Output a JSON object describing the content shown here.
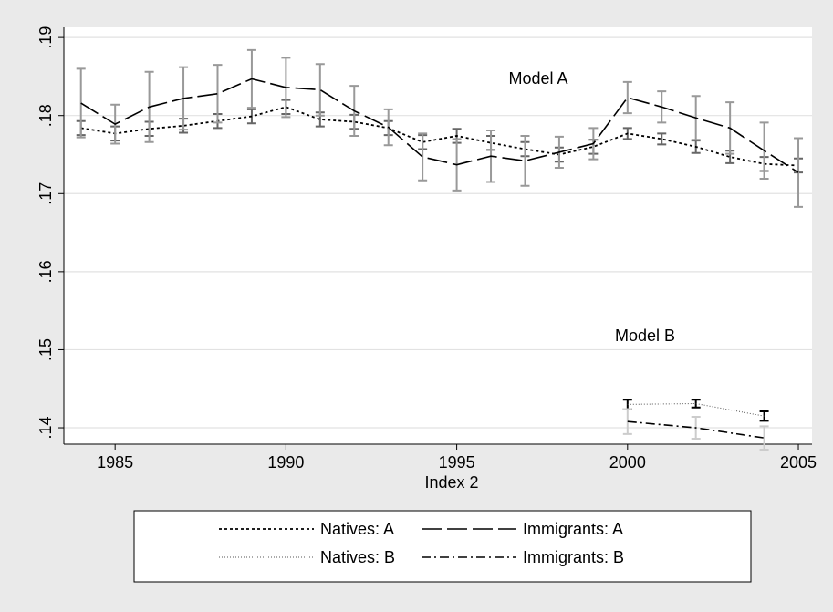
{
  "chart_data": {
    "type": "line",
    "xlabel": "Index 2",
    "annotations": [
      "Model A",
      "Model B"
    ],
    "xlim": [
      1983.5,
      2005.4
    ],
    "xticks": [
      1985,
      1990,
      1995,
      2000,
      2005
    ],
    "ylim": [
      0.1379,
      0.1913
    ],
    "yticks": [
      {
        "value": 0.14,
        "label": ".14"
      },
      {
        "value": 0.15,
        "label": ".15"
      },
      {
        "value": 0.16,
        "label": ".16"
      },
      {
        "value": 0.17,
        "label": ".17"
      },
      {
        "value": 0.18,
        "label": ".18"
      },
      {
        "value": 0.19,
        "label": ".19"
      }
    ],
    "grid": true,
    "legend": "bottom",
    "series": [
      {
        "name": "Natives: A",
        "color": "#000000",
        "line_style": "dotted",
        "error_color": "#666666",
        "x": [
          1984,
          1985,
          1986,
          1987,
          1988,
          1989,
          1990,
          1991,
          1992,
          1993,
          1994,
          1995,
          1996,
          1997,
          1998,
          1999,
          2000,
          2001,
          2002,
          2003,
          2004,
          2005
        ],
        "values": [
          0.1784,
          0.1777,
          0.1783,
          0.1787,
          0.1793,
          0.1799,
          0.1811,
          0.1795,
          0.1792,
          0.1784,
          0.1766,
          0.1774,
          0.1765,
          0.1757,
          0.175,
          0.176,
          0.1777,
          0.177,
          0.176,
          0.1747,
          0.1738,
          0.1736
        ],
        "errors": [
          0.0009,
          0.0009,
          0.0009,
          0.0009,
          0.0009,
          0.0009,
          0.0009,
          0.0009,
          0.0009,
          0.0009,
          0.0009,
          0.0009,
          0.0009,
          0.0009,
          0.0009,
          0.0009,
          0.0007,
          0.0007,
          0.0008,
          0.0008,
          0.0009,
          0.0009
        ]
      },
      {
        "name": "Immigrants: A",
        "color": "#000000",
        "line_style": "longdash",
        "error_color": "#999999",
        "x": [
          1984,
          1985,
          1986,
          1987,
          1988,
          1989,
          1990,
          1991,
          1992,
          1993,
          1994,
          1995,
          1996,
          1997,
          1998,
          1999,
          2000,
          2001,
          2002,
          2003,
          2004,
          2005
        ],
        "values": [
          0.1816,
          0.1789,
          0.1811,
          0.1822,
          0.1828,
          0.1847,
          0.1836,
          0.1833,
          0.1806,
          0.1785,
          0.1747,
          0.1737,
          0.1748,
          0.1742,
          0.1753,
          0.1764,
          0.1823,
          0.1811,
          0.1797,
          0.1784,
          0.1755,
          0.1727
        ],
        "errors": [
          0.0044,
          0.0025,
          0.0045,
          0.004,
          0.0037,
          0.0037,
          0.0038,
          0.0033,
          0.0032,
          0.0023,
          0.003,
          0.0033,
          0.0033,
          0.0032,
          0.002,
          0.002,
          0.002,
          0.002,
          0.0028,
          0.0033,
          0.0036,
          0.0044
        ]
      },
      {
        "name": "Natives: B",
        "color": "#555555",
        "line_style": "fine-dotted",
        "error_color": "#000000",
        "x": [
          2000,
          2002,
          2004
        ],
        "values": [
          0.143,
          0.1431,
          0.1415
        ],
        "errors": [
          0.0006,
          0.0005,
          0.0006
        ]
      },
      {
        "name": "Immigrants: B",
        "color": "#000000",
        "line_style": "dashdot",
        "error_color": "#cccccc",
        "x": [
          2000,
          2002,
          2004
        ],
        "values": [
          0.1408,
          0.14,
          0.1387
        ],
        "errors": [
          0.0016,
          0.0014,
          0.0015
        ]
      }
    ]
  }
}
